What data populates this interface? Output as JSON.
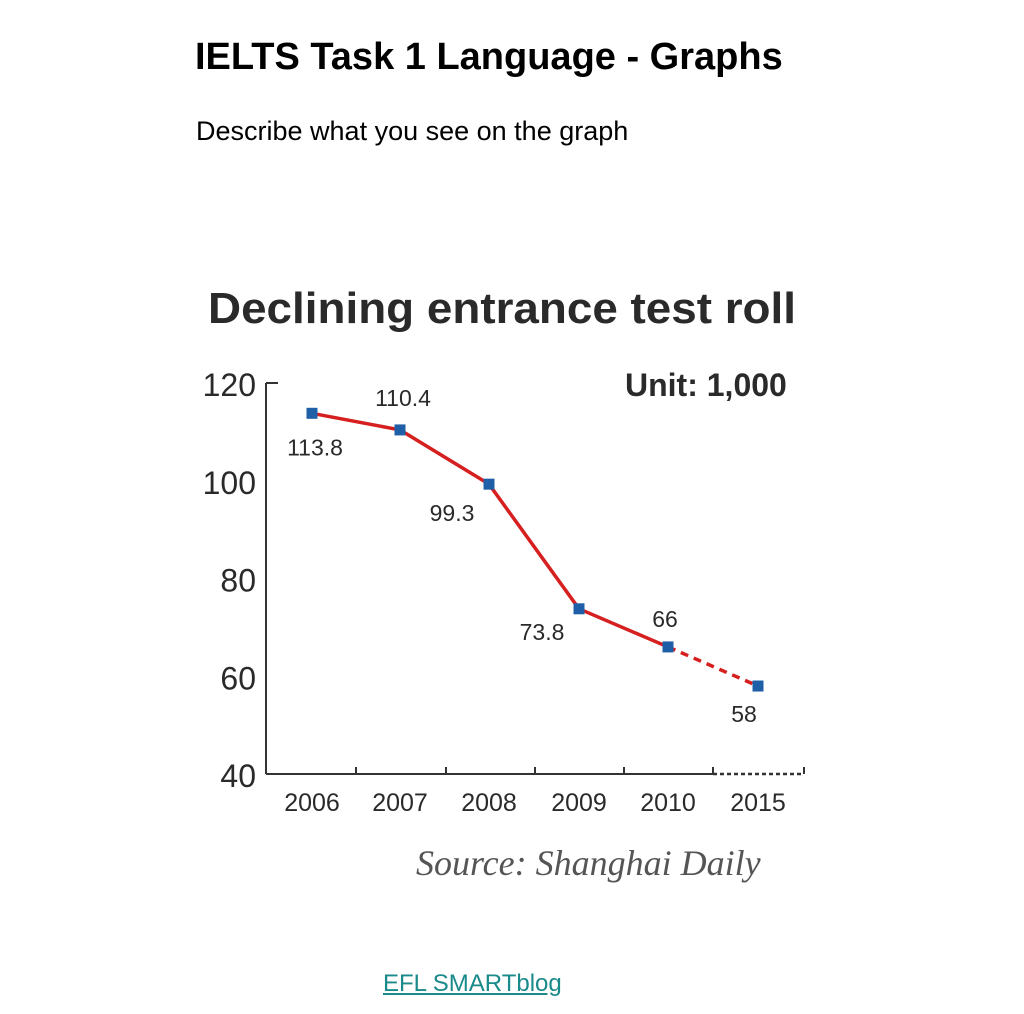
{
  "slide": {
    "title": "IELTS Task 1 Language - Graphs",
    "subtitle": "Describe what you see on the graph"
  },
  "chart_data": {
    "type": "line",
    "title": "Declining entrance test roll",
    "unit_label": "Unit: 1,000",
    "source": "Source: Shanghai Daily",
    "categories": [
      "2006",
      "2007",
      "2008",
      "2009",
      "2010",
      "2015"
    ],
    "series": [
      {
        "name": "Entrance test roll",
        "values": [
          113.8,
          110.4,
          99.3,
          73.8,
          66,
          58
        ],
        "value_labels": [
          "113.8",
          "110.4",
          "99.3",
          "73.8",
          "66",
          "58"
        ],
        "projected_from_index": 4
      }
    ],
    "yticks": [
      "120",
      "100",
      "80",
      "60",
      "40"
    ],
    "ylim": [
      40,
      120
    ],
    "xlabel": "",
    "ylabel": "",
    "grid": false,
    "line_color": "#d61f1f",
    "marker_color": "#1f5fa8"
  },
  "footer": {
    "link_text": "EFL SMARTblog"
  }
}
